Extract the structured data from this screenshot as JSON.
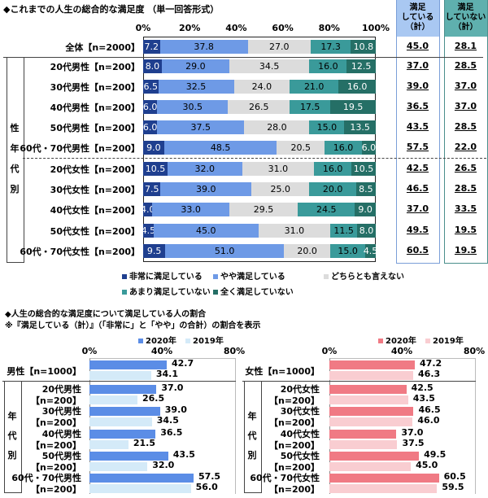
{
  "top": {
    "title": "◆これまでの人生の総合的な満足度 （単一回答形式）",
    "ticks": [
      "0%",
      "20%",
      "40%",
      "60%",
      "80%",
      "100%"
    ],
    "col1_header": [
      "満足",
      "している",
      "（計）"
    ],
    "col2_header": [
      "満足",
      "していない",
      "（計）"
    ],
    "group_label": [
      "性",
      "年",
      "代",
      "別"
    ],
    "legend": [
      "非常に満足している",
      "やや満足している",
      "どちらとも言えない",
      "あまり満足していない",
      "全く満足していない"
    ]
  },
  "bottom": {
    "title": "◆人生の総合的な満足度について満足している人の割合",
    "subtitle": "※『満足している（計）』（「非常に」と「やや」の合計）の割合を表示",
    "ticks": [
      "0%",
      "40%",
      "80%"
    ],
    "legend": [
      "2020年",
      "2019年"
    ],
    "group_label": [
      "年",
      "代",
      "別"
    ]
  },
  "chart_data": [
    {
      "type": "bar",
      "orientation": "horizontal-stacked",
      "title": "◆これまでの人生の総合的な満足度 （単一回答形式）",
      "xlim": [
        0,
        100
      ],
      "colors": [
        "#1f3f8f",
        "#6e9ae6",
        "#dcdcdc",
        "#3a9a9a",
        "#256f66"
      ],
      "categories": [
        "全体【n=2000】",
        "20代男性【n=200】",
        "30代男性【n=200】",
        "40代男性【n=200】",
        "50代男性【n=200】",
        "60代・70代男性【n=200】",
        "20代女性【n=200】",
        "30代女性【n=200】",
        "40代女性【n=200】",
        "50代女性【n=200】",
        "60代・70代女性【n=200】"
      ],
      "series": [
        {
          "name": "非常に満足している",
          "values": [
            7.2,
            8.0,
            6.5,
            6.0,
            6.0,
            9.0,
            10.5,
            7.5,
            4.0,
            4.5,
            9.5
          ]
        },
        {
          "name": "やや満足している",
          "values": [
            37.8,
            29.0,
            32.5,
            30.5,
            37.5,
            48.5,
            32.0,
            39.0,
            33.0,
            45.0,
            51.0
          ]
        },
        {
          "name": "どちらとも言えない",
          "values": [
            27.0,
            34.5,
            24.0,
            26.5,
            28.0,
            20.5,
            31.0,
            25.0,
            29.5,
            31.0,
            20.0
          ]
        },
        {
          "name": "あまり満足していない",
          "values": [
            17.3,
            16.0,
            21.0,
            17.5,
            15.0,
            16.0,
            16.0,
            20.0,
            24.5,
            11.5,
            15.0
          ]
        },
        {
          "name": "全く満足していない",
          "values": [
            10.8,
            12.5,
            16.0,
            19.5,
            13.5,
            6.0,
            10.5,
            8.5,
            9.0,
            8.0,
            4.5
          ]
        }
      ],
      "satisfied_total": [
        "45.0",
        "37.0",
        "39.0",
        "36.5",
        "43.5",
        "57.5",
        "42.5",
        "46.5",
        "37.0",
        "49.5",
        "60.5"
      ],
      "unsatisfied_total": [
        "28.1",
        "28.5",
        "37.0",
        "37.0",
        "28.5",
        "22.0",
        "26.5",
        "28.5",
        "33.5",
        "19.5",
        "19.5"
      ]
    },
    {
      "type": "bar",
      "orientation": "horizontal",
      "xlim": [
        0,
        80
      ],
      "colors": [
        "#5b8de6",
        "#d4eaf8"
      ],
      "categories": [
        [
          "男性【n=1000】"
        ],
        [
          "20代男性",
          "【n=200】"
        ],
        [
          "30代男性",
          "【n=200】"
        ],
        [
          "40代男性",
          "【n=200】"
        ],
        [
          "50代男性",
          "【n=200】"
        ],
        [
          "60代・70代男性",
          "【n=200】"
        ]
      ],
      "series": [
        {
          "name": "2020年",
          "values": [
            42.7,
            37.0,
            39.0,
            36.5,
            43.5,
            57.5
          ]
        },
        {
          "name": "2019年",
          "values": [
            34.1,
            26.5,
            34.5,
            21.5,
            32.0,
            56.0
          ]
        }
      ]
    },
    {
      "type": "bar",
      "orientation": "horizontal",
      "xlim": [
        0,
        80
      ],
      "colors": [
        "#f07a84",
        "#f9cdd1"
      ],
      "categories": [
        [
          "女性【n=1000】"
        ],
        [
          "20代女性",
          "【n=200】"
        ],
        [
          "30代女性",
          "【n=200】"
        ],
        [
          "40代女性",
          "【n=200】"
        ],
        [
          "50代女性",
          "【n=200】"
        ],
        [
          "60代・70代女性",
          "【n=200】"
        ]
      ],
      "series": [
        {
          "name": "2020年",
          "values": [
            47.2,
            42.5,
            46.5,
            37.0,
            49.5,
            60.5
          ]
        },
        {
          "name": "2019年",
          "values": [
            46.3,
            43.5,
            46.0,
            37.5,
            45.0,
            59.5
          ]
        }
      ]
    }
  ]
}
